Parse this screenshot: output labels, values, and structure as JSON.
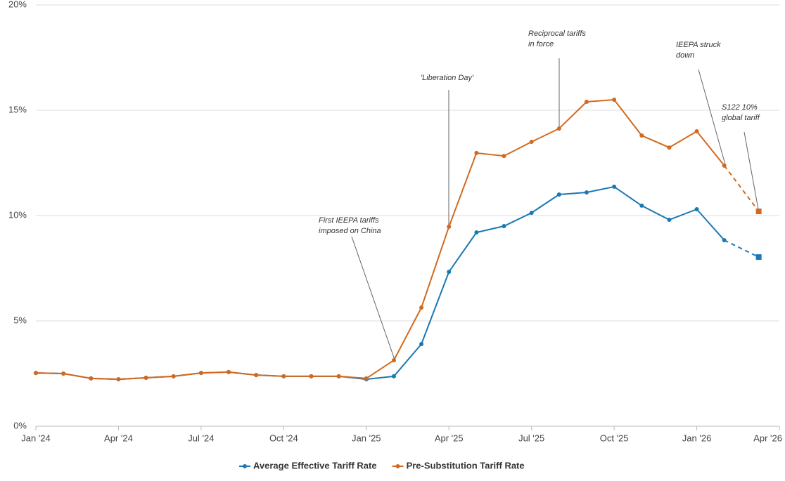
{
  "chart_data": {
    "type": "line",
    "x": [
      0,
      1,
      2,
      3,
      4,
      5,
      6,
      7,
      8,
      9,
      10,
      11,
      12,
      13,
      14,
      15,
      16,
      17,
      18,
      19,
      20,
      21,
      22,
      23,
      24,
      25,
      26.25
    ],
    "xlim": [
      0,
      27
    ],
    "xticks": [
      {
        "value": 0,
        "label": "Jan '24"
      },
      {
        "value": 3,
        "label": "Apr '24"
      },
      {
        "value": 6,
        "label": "Jul '24"
      },
      {
        "value": 9,
        "label": "Oct '24"
      },
      {
        "value": 12,
        "label": "Jan '25"
      },
      {
        "value": 15,
        "label": "Apr '25"
      },
      {
        "value": 18,
        "label": "Jul '25"
      },
      {
        "value": 21,
        "label": "Oct '25"
      },
      {
        "value": 24,
        "label": "Jan '26"
      },
      {
        "value": 27,
        "label": "Apr '26"
      }
    ],
    "ylim": [
      0,
      20
    ],
    "yticks": [
      {
        "value": 0,
        "label": "0%"
      },
      {
        "value": 5,
        "label": "5%"
      },
      {
        "value": 10,
        "label": "10%"
      },
      {
        "value": 15,
        "label": "15%"
      },
      {
        "value": 20,
        "label": "20%"
      }
    ],
    "grid": true,
    "last_segment_style": "dashed",
    "last_point_marker": "square",
    "series": [
      {
        "name": "Average Effective Tariff Rate",
        "color": "#1a78b2",
        "values": [
          2.53,
          2.5,
          2.27,
          2.23,
          2.3,
          2.37,
          2.53,
          2.57,
          2.43,
          2.37,
          2.37,
          2.37,
          2.23,
          2.37,
          3.9,
          7.33,
          9.2,
          9.5,
          10.13,
          11.0,
          11.1,
          11.37,
          10.47,
          9.8,
          10.3,
          8.83,
          8.03
        ]
      },
      {
        "name": "Pre-Substitution Tariff Rate",
        "color": "#d2691e",
        "values": [
          2.53,
          2.5,
          2.27,
          2.23,
          2.3,
          2.37,
          2.53,
          2.57,
          2.43,
          2.37,
          2.37,
          2.37,
          2.27,
          3.13,
          5.63,
          9.47,
          12.97,
          12.83,
          13.5,
          14.13,
          15.4,
          15.5,
          13.8,
          13.23,
          14.0,
          12.37,
          10.2
        ]
      }
    ],
    "annotations": [
      {
        "lines": [
          "First IEEPA tariffs",
          "imposed on China"
        ]
      },
      {
        "lines": [
          "'Liberation Day'"
        ]
      },
      {
        "lines": [
          "Reciprocal tariffs",
          "in force"
        ]
      },
      {
        "lines": [
          "IEEPA struck",
          "down"
        ]
      },
      {
        "lines": [
          "S122 10%",
          "global tariff"
        ]
      }
    ]
  }
}
